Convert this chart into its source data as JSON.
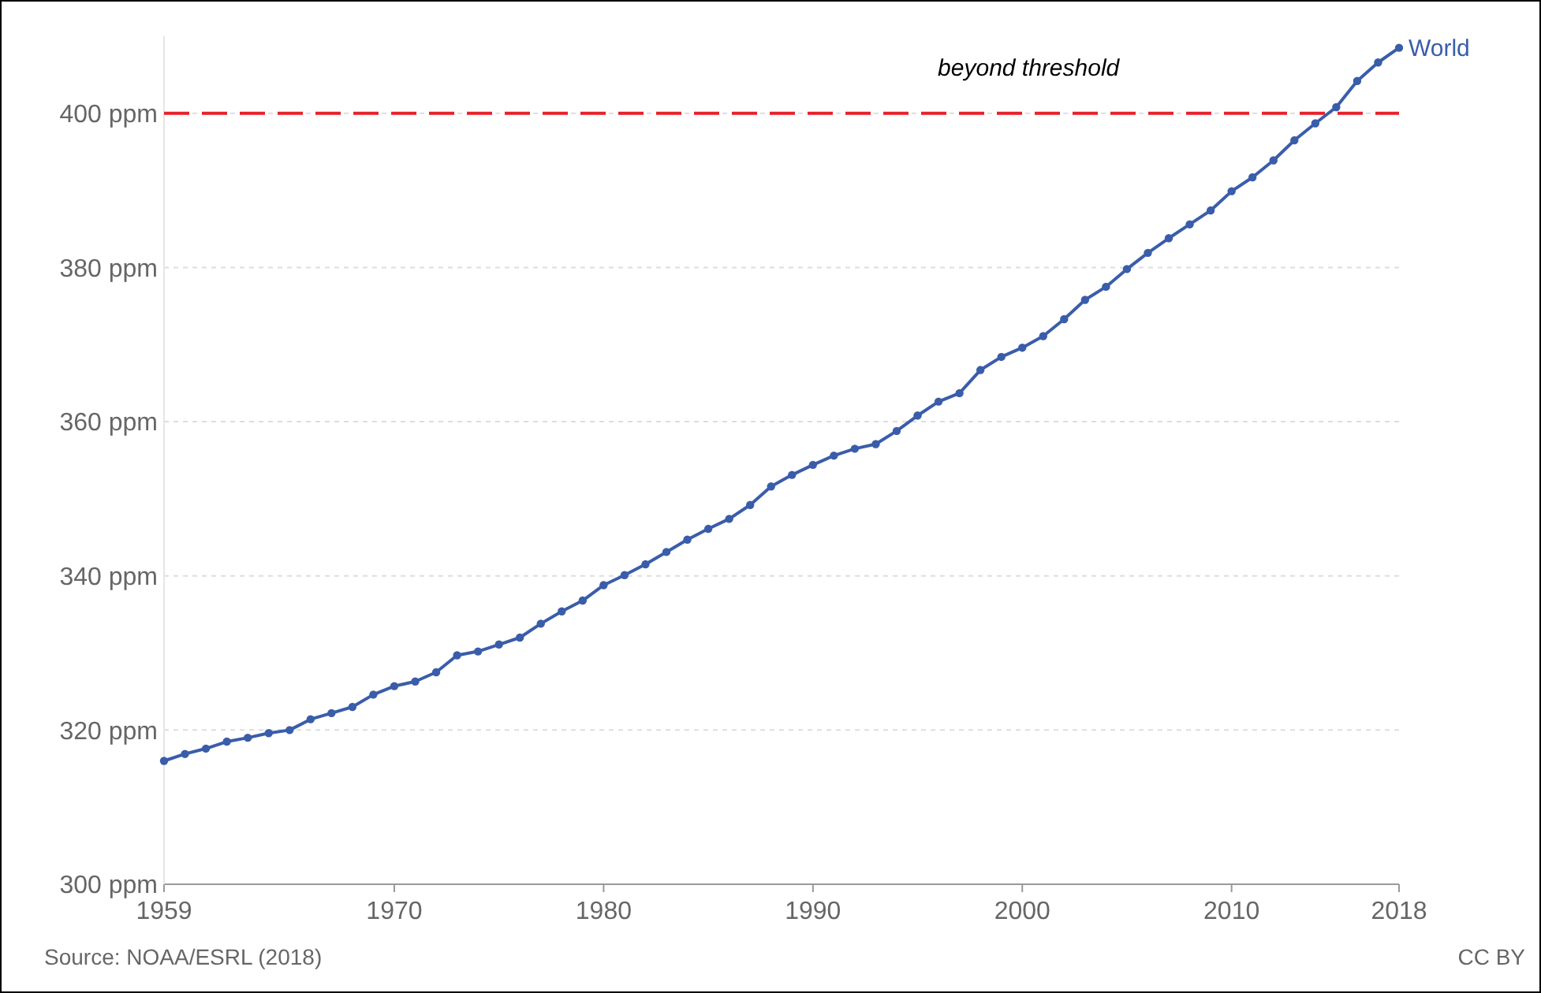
{
  "chart_data": {
    "type": "line",
    "x": [
      1959,
      1960,
      1961,
      1962,
      1963,
      1964,
      1965,
      1966,
      1967,
      1968,
      1969,
      1970,
      1971,
      1972,
      1973,
      1974,
      1975,
      1976,
      1977,
      1978,
      1979,
      1980,
      1981,
      1982,
      1983,
      1984,
      1985,
      1986,
      1987,
      1988,
      1989,
      1990,
      1991,
      1992,
      1993,
      1994,
      1995,
      1996,
      1997,
      1998,
      1999,
      2000,
      2001,
      2002,
      2003,
      2004,
      2005,
      2006,
      2007,
      2008,
      2009,
      2010,
      2011,
      2012,
      2013,
      2014,
      2015,
      2016,
      2017,
      2018
    ],
    "series": [
      {
        "name": "World",
        "color": "#3a5daa",
        "values": [
          316.0,
          316.9,
          317.6,
          318.5,
          319.0,
          319.6,
          320.0,
          321.4,
          322.2,
          323.0,
          324.6,
          325.7,
          326.3,
          327.5,
          329.7,
          330.2,
          331.1,
          332.0,
          333.8,
          335.4,
          336.8,
          338.8,
          340.1,
          341.5,
          343.1,
          344.7,
          346.1,
          347.4,
          349.2,
          351.6,
          353.1,
          354.4,
          355.6,
          356.5,
          357.1,
          358.8,
          360.8,
          362.6,
          363.7,
          366.7,
          368.4,
          369.6,
          371.1,
          373.3,
          375.8,
          377.5,
          379.8,
          381.9,
          383.8,
          385.6,
          387.4,
          389.9,
          391.7,
          393.9,
          396.5,
          398.7,
          400.8,
          404.2,
          406.6,
          408.5
        ]
      }
    ],
    "xlim": [
      1959,
      2018
    ],
    "xticks": [
      1959,
      1970,
      1980,
      1990,
      2000,
      2010,
      2018
    ],
    "ylim": [
      300,
      410
    ],
    "yticks": [
      {
        "value": 300,
        "label": "300 ppm"
      },
      {
        "value": 320,
        "label": "320 ppm"
      },
      {
        "value": 340,
        "label": "340 ppm"
      },
      {
        "value": 360,
        "label": "360 ppm"
      },
      {
        "value": 380,
        "label": "380 ppm"
      },
      {
        "value": 400,
        "label": "400 ppm"
      }
    ],
    "grid": "y",
    "marker": "circle",
    "line_style": "solid",
    "ref_lines": [
      {
        "axis": "y",
        "value": 400,
        "label": "beyond threshold",
        "color": "#e8202a",
        "line_style": "dashed"
      }
    ],
    "annotations": [
      "Source: NOAA/ESRL (2018)",
      "CC BY"
    ]
  }
}
